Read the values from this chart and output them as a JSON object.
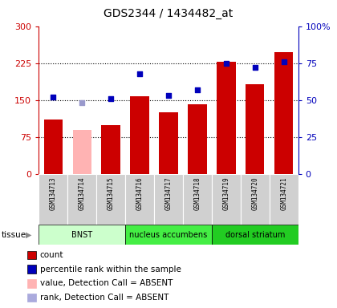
{
  "title": "GDS2344 / 1434482_at",
  "samples": [
    "GSM134713",
    "GSM134714",
    "GSM134715",
    "GSM134716",
    "GSM134717",
    "GSM134718",
    "GSM134719",
    "GSM134720",
    "GSM134721"
  ],
  "bar_values": [
    110,
    90,
    100,
    158,
    125,
    142,
    228,
    182,
    248
  ],
  "bar_colors": [
    "#cc0000",
    "#ffb3b3",
    "#cc0000",
    "#cc0000",
    "#cc0000",
    "#cc0000",
    "#cc0000",
    "#cc0000",
    "#cc0000"
  ],
  "dot_values_pct": [
    52,
    48,
    51,
    68,
    53,
    57,
    75,
    72,
    76
  ],
  "dot_colors": [
    "#0000bb",
    "#9999cc",
    "#0000bb",
    "#0000bb",
    "#0000bb",
    "#0000bb",
    "#0000bb",
    "#0000bb",
    "#0000bb"
  ],
  "ylim_left": [
    0,
    300
  ],
  "ylim_right": [
    0,
    100
  ],
  "yticks_left": [
    0,
    75,
    150,
    225,
    300
  ],
  "ytick_labels_left": [
    "0",
    "75",
    "150",
    "225",
    "300"
  ],
  "yticks_right": [
    0,
    25,
    50,
    75,
    100
  ],
  "ytick_labels_right": [
    "0",
    "25",
    "50",
    "75",
    "100%"
  ],
  "tissue_groups": [
    {
      "label": "BNST",
      "start": 0,
      "end": 3,
      "color": "#ccffcc"
    },
    {
      "label": "nucleus accumbens",
      "start": 3,
      "end": 6,
      "color": "#44ee44"
    },
    {
      "label": "dorsal striatum",
      "start": 6,
      "end": 9,
      "color": "#22dd22"
    }
  ],
  "tissue_label": "tissue",
  "legend_items": [
    {
      "color": "#cc0000",
      "label": "count"
    },
    {
      "color": "#0000bb",
      "label": "percentile rank within the sample"
    },
    {
      "color": "#ffb3b3",
      "label": "value, Detection Call = ABSENT"
    },
    {
      "color": "#aaaadd",
      "label": "rank, Detection Call = ABSENT"
    }
  ],
  "left_axis_color": "#cc0000",
  "right_axis_color": "#0000bb",
  "grid_dotted_yticks": [
    75,
    150,
    225
  ]
}
